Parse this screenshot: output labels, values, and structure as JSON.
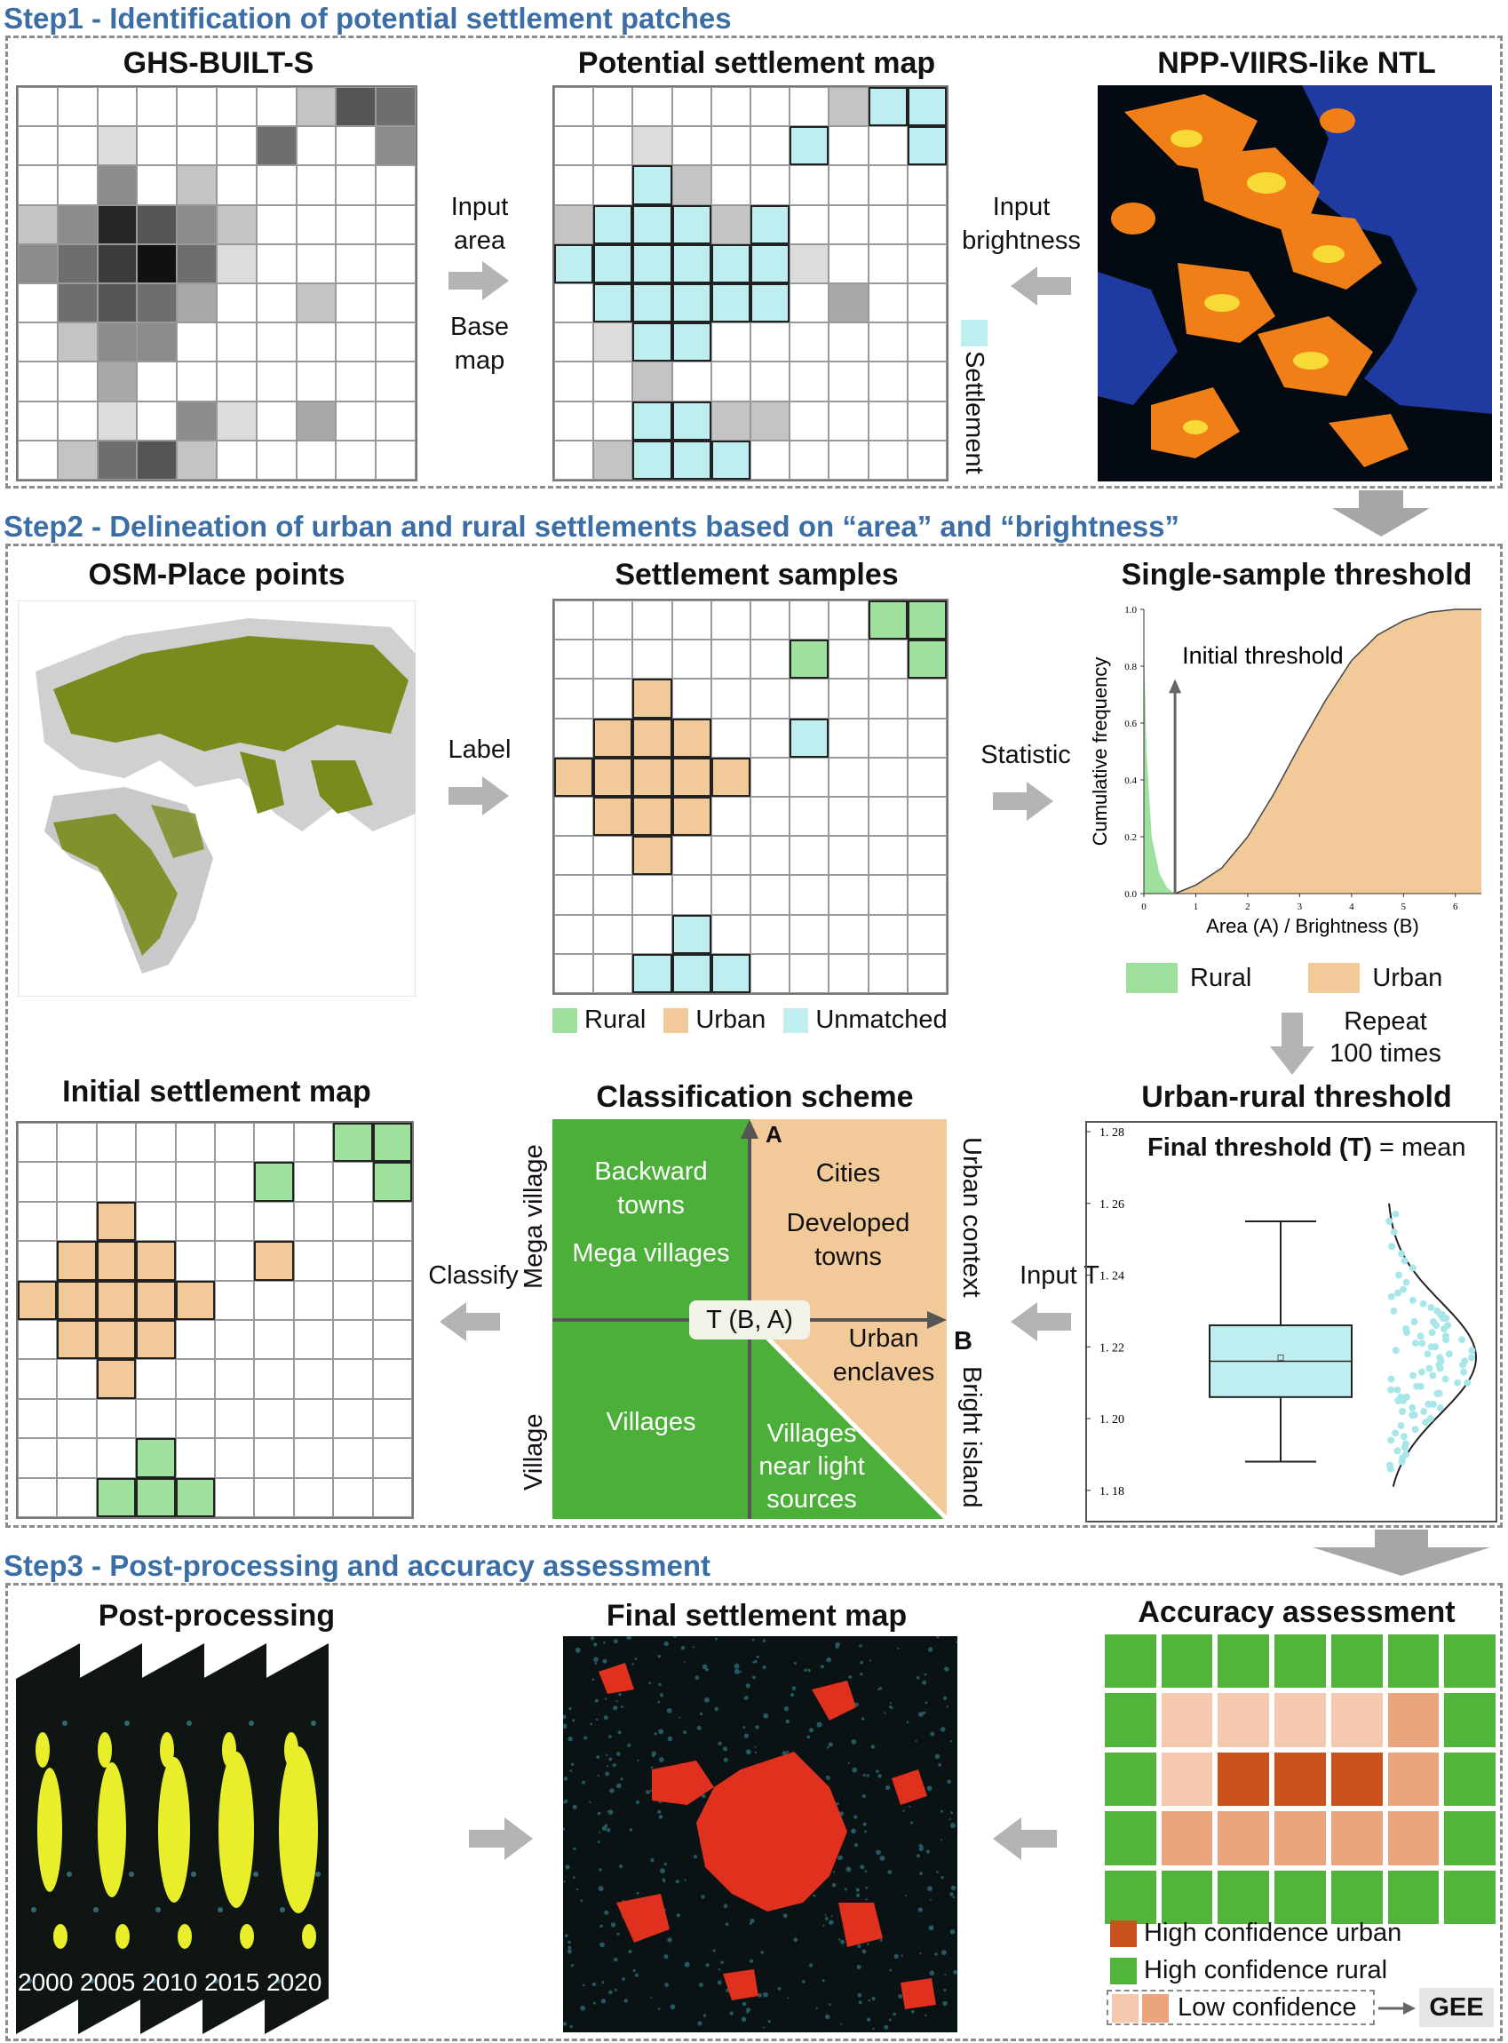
{
  "step1": {
    "title": "Step1 - Identification of potential settlement patches",
    "panel1_title": "GHS-BUILT-S",
    "panel2_title": "Potential settlement map",
    "panel3_title": "NPP-VIIRS-like NTL",
    "input_area": "Input\narea",
    "base_map": "Base\nmap",
    "input_brightness": "Input\nbrightness",
    "settlement_legend": "Settlement"
  },
  "step2": {
    "title": "Step2 - Delineation of urban and rural settlements based on “area” and “brightness”",
    "osm_title": "OSM-Place points",
    "samples_title": "Settlement samples",
    "single_title": "Single-sample threshold",
    "label_arrow": "Label",
    "statistic_arrow": "Statistic",
    "legend": {
      "rural": "Rural",
      "urban": "Urban",
      "unmatched": "Unmatched"
    },
    "repeat": "Repeat\n100 times",
    "initial_map_title": "Initial settlement map",
    "scheme_title": "Classification scheme",
    "urban_rural_title": "Urban-rural threshold",
    "classify_arrow": "Classify",
    "input_t": "Input T",
    "scheme": {
      "axis_a": "A",
      "axis_b": "B",
      "left_top": "Mega village",
      "left_bottom": "Village",
      "right_top": "Urban context",
      "right_bottom": "Bright island",
      "q_top_left_1": "Backward\ntowns",
      "q_top_left_2": "Mega villages",
      "q_top_right_1": "Cities",
      "q_top_right_2": "Developed\ntowns",
      "q_urban_enclaves": "Urban\nenclaves",
      "q_villages": "Villages",
      "q_villages_near": "Villages\nnear light\nsources",
      "center": "T (B, A)"
    },
    "threshold_chart_title_bold": "Final threshold (T)",
    "threshold_chart_title_rest": " = mean",
    "single_chart_annot": "Initial threshold",
    "single_legend_rural": "Rural",
    "single_legend_urban": "Urban"
  },
  "step3": {
    "title": "Step3 - Post-processing and accuracy assessment",
    "post_title": "Post-processing",
    "final_title": "Final settlement map",
    "acc_title": "Accuracy assessment",
    "years": [
      "2000",
      "2005",
      "2010",
      "2015",
      "2020"
    ],
    "legend_high_urban": "High confidence urban",
    "legend_high_rural": "High confidence rural",
    "legend_low": "Low confidence",
    "gee": "GEE"
  },
  "colors": {
    "step_blue": "#3b6ea5",
    "cyan": "#bfeef0",
    "rural_green": "#9ee09e",
    "urban_tan": "#f2c999",
    "scheme_green": "#4caf39",
    "acc_green": "#52b43a",
    "acc_dark": "#c9511c",
    "acc_mid": "#eaa57d",
    "acc_light": "#f4c9ad"
  },
  "chart_data": [
    {
      "type": "area",
      "title": "Single-sample threshold",
      "xlabel": "Area (A) / Brightness (B)",
      "ylabel": "Cumulative frequency",
      "xlim": [
        0,
        6.5
      ],
      "ylim": [
        0,
        1.0
      ],
      "xticks": [
        "0",
        "1",
        "2",
        "3",
        "4",
        "5",
        "6"
      ],
      "yticks": [
        "0.0",
        "0.2",
        "0.4",
        "0.6",
        "0.8",
        "1.0"
      ],
      "series": [
        {
          "name": "Rural",
          "x": [
            0,
            0.05,
            0.15,
            0.3,
            0.45,
            0.6
          ],
          "y": [
            0.9,
            0.5,
            0.2,
            0.07,
            0.02,
            0.0
          ]
        },
        {
          "name": "Urban",
          "x": [
            0.6,
            1,
            1.5,
            2,
            2.5,
            3,
            3.5,
            4,
            4.5,
            5,
            5.5,
            6,
            6.5
          ],
          "y": [
            0.0,
            0.03,
            0.09,
            0.2,
            0.35,
            0.52,
            0.68,
            0.82,
            0.91,
            0.96,
            0.99,
            1.0,
            1.0
          ]
        }
      ],
      "annotation": {
        "text": "Initial threshold",
        "x": 0.6
      }
    },
    {
      "type": "box",
      "title": "Final threshold (T) = mean",
      "ylim": [
        1.175,
        1.28
      ],
      "yticks": [
        "1.18",
        "1.20",
        "1.22",
        "1.24",
        "1.26",
        "1.28"
      ],
      "box": {
        "whisker_low": 1.188,
        "q1": 1.206,
        "median": 1.216,
        "mean": 1.217,
        "q3": 1.226,
        "whisker_high": 1.255
      },
      "points": [
        1.257,
        1.255,
        1.252,
        1.248,
        1.246,
        1.244,
        1.242,
        1.24,
        1.238,
        1.236,
        1.235,
        1.234,
        1.233,
        1.232,
        1.231,
        1.23,
        1.23,
        1.229,
        1.229,
        1.228,
        1.228,
        1.227,
        1.227,
        1.226,
        1.226,
        1.225,
        1.225,
        1.224,
        1.224,
        1.223,
        1.223,
        1.222,
        1.222,
        1.221,
        1.221,
        1.22,
        1.22,
        1.219,
        1.219,
        1.218,
        1.218,
        1.217,
        1.217,
        1.216,
        1.216,
        1.215,
        1.215,
        1.214,
        1.214,
        1.213,
        1.213,
        1.212,
        1.212,
        1.211,
        1.211,
        1.21,
        1.21,
        1.209,
        1.209,
        1.208,
        1.208,
        1.207,
        1.207,
        1.206,
        1.206,
        1.205,
        1.205,
        1.204,
        1.204,
        1.203,
        1.203,
        1.202,
        1.202,
        1.201,
        1.201,
        1.2,
        1.199,
        1.198,
        1.197,
        1.196,
        1.195,
        1.194,
        1.193,
        1.192,
        1.191,
        1.19,
        1.189,
        1.188,
        1.187,
        1.186
      ]
    }
  ]
}
